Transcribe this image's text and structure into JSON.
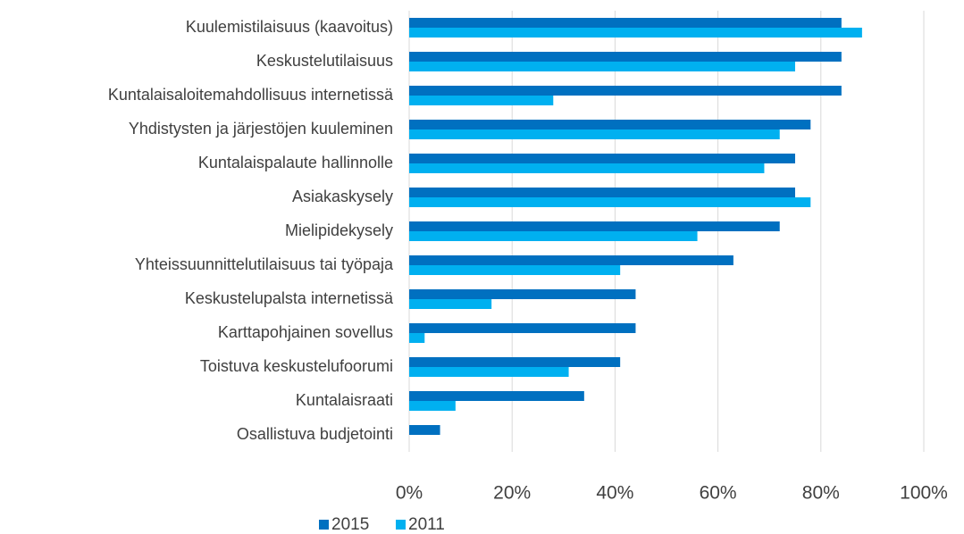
{
  "chart_data": {
    "type": "hbar",
    "categories": [
      "Kuulemistilaisuus (kaavoitus)",
      "Keskustelutilaisuus",
      "Kuntalaisaloitemahdollisuus internetissä",
      "Yhdistysten ja järjestöjen kuuleminen",
      "Kuntalaispalaute hallinnolle",
      "Asiakaskysely",
      "Mielipidekysely",
      "Yhteissuunnittelutilaisuus tai työpaja",
      "Keskustelupalsta internetissä",
      "Karttapohjainen sovellus",
      "Toistuva keskustelufoorumi",
      "Kuntalaisraati",
      "Osallistuva budjetointi"
    ],
    "series": [
      {
        "name": "2015",
        "color": "#0070c0",
        "values": [
          84,
          84,
          84,
          78,
          75,
          75,
          72,
          63,
          44,
          44,
          41,
          34,
          6
        ]
      },
      {
        "name": "2011",
        "color": "#00b0f0",
        "values": [
          88,
          75,
          28,
          72,
          69,
          78,
          56,
          41,
          16,
          3,
          31,
          9,
          null
        ]
      }
    ],
    "xlim": [
      0,
      100
    ],
    "xticks": [
      {
        "value": 0,
        "label": "0%"
      },
      {
        "value": 20,
        "label": "20%"
      },
      {
        "value": 40,
        "label": "40%"
      },
      {
        "value": 60,
        "label": "60%"
      },
      {
        "value": 80,
        "label": "80%"
      },
      {
        "value": 100,
        "label": "100%"
      }
    ],
    "grid": true,
    "legend": "bottom"
  }
}
